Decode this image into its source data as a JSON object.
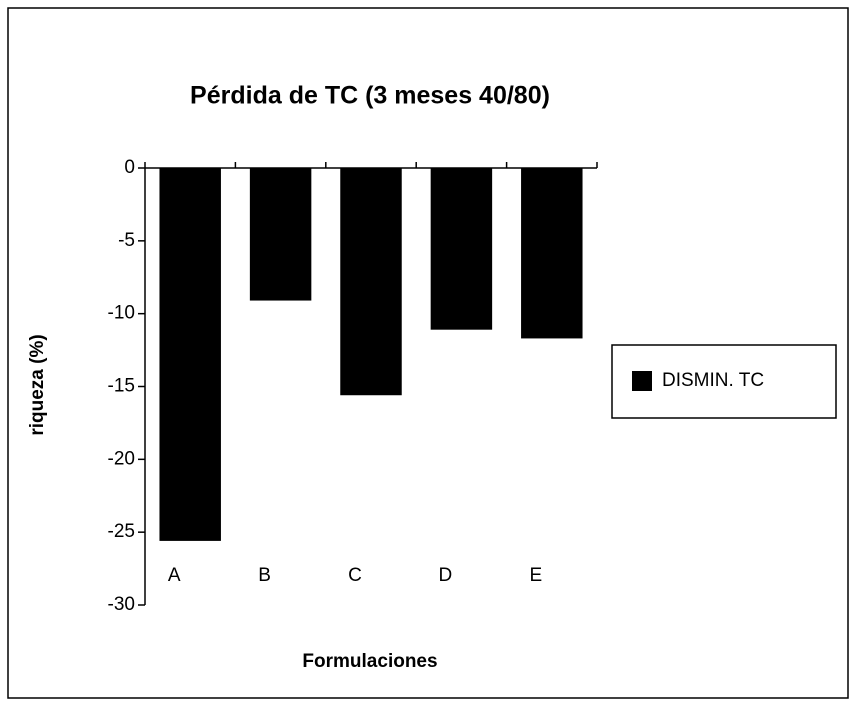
{
  "chart_data": {
    "type": "bar",
    "title": "Pérdida de TC  (3 meses 40/80)",
    "x_label": "Formulaciones",
    "y_label": "riqueza (%)",
    "categories": [
      "A",
      "B",
      "C",
      "D",
      "E"
    ],
    "series": [
      {
        "name": "DISMIN. TC",
        "color": "#000000",
        "values": [
          -25.6,
          -9.1,
          -15.6,
          -11.1,
          -11.7
        ]
      }
    ],
    "ylim": [
      -30,
      0
    ],
    "yticks": [
      0,
      -5,
      -10,
      -15,
      -20,
      -25,
      -30
    ],
    "legend": "right",
    "grid": false
  }
}
